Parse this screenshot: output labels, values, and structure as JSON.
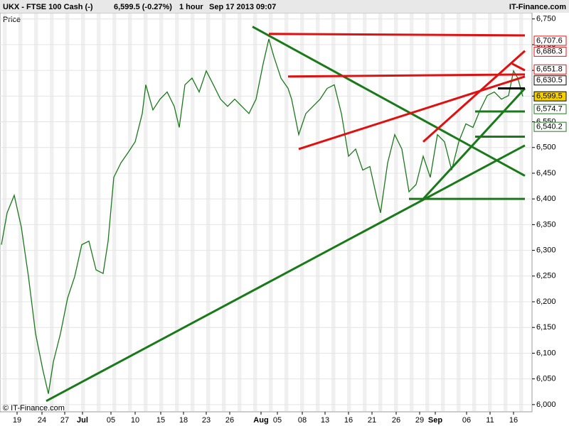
{
  "chart_data": {
    "type": "line",
    "header": {
      "title": "UKX - FTSE 100 Cash (-)",
      "quote": "6,599.5 (-0.27%)",
      "interval": "1 hour",
      "timestamp": "Sep 17 2013 09:07",
      "brand": "IT-Finance.com"
    },
    "ylabel": "Price",
    "watermark": "© IT-Finance.com",
    "color": "#1a7a1a",
    "xlim": [
      0,
      748
    ],
    "ylim": [
      5986,
      6762
    ],
    "x": [
      2,
      10,
      20,
      30,
      40,
      50,
      60,
      68,
      75,
      85,
      95,
      105,
      115,
      125,
      135,
      145,
      152,
      160,
      170,
      180,
      190,
      200,
      205,
      215,
      225,
      235,
      245,
      252,
      260,
      270,
      280,
      290,
      300,
      310,
      320,
      330,
      340,
      350,
      360,
      370,
      378,
      385,
      395,
      405,
      410,
      420,
      430,
      440,
      450,
      460,
      470,
      480,
      490,
      500,
      510,
      520,
      530,
      535,
      545,
      555,
      565,
      575,
      585,
      595,
      605,
      615,
      625,
      635,
      645,
      655,
      665,
      675,
      685,
      695,
      705,
      715,
      722,
      728,
      735
    ],
    "values": [
      6311,
      6373,
      6407,
      6345,
      6249,
      6138,
      6069,
      6021,
      6083,
      6138,
      6207,
      6249,
      6311,
      6318,
      6262,
      6255,
      6318,
      6442,
      6470,
      6490,
      6511,
      6566,
      6622,
      6573,
      6594,
      6608,
      6580,
      6539,
      6622,
      6635,
      6608,
      6649,
      6622,
      6594,
      6580,
      6594,
      6580,
      6566,
      6594,
      6663,
      6711,
      6677,
      6635,
      6615,
      6594,
      6525,
      6566,
      6580,
      6594,
      6615,
      6622,
      6566,
      6483,
      6497,
      6456,
      6463,
      6401,
      6373,
      6470,
      6525,
      6497,
      6414,
      6428,
      6483,
      6442,
      6525,
      6511,
      6456,
      6511,
      6546,
      6539,
      6573,
      6601,
      6608,
      6594,
      6601,
      6649,
      6635,
      6599.5
    ],
    "yticks": [
      {
        "value": 6000,
        "label": "6,000"
      },
      {
        "value": 6050,
        "label": "6,050"
      },
      {
        "value": 6100,
        "label": "6,100"
      },
      {
        "value": 6150,
        "label": "6,150"
      },
      {
        "value": 6200,
        "label": "6,200"
      },
      {
        "value": 6250,
        "label": "6,250"
      },
      {
        "value": 6300,
        "label": "6,300"
      },
      {
        "value": 6350,
        "label": "6,350"
      },
      {
        "value": 6400,
        "label": "6,400"
      },
      {
        "value": 6450,
        "label": "6,450"
      },
      {
        "value": 6500,
        "label": "6,500"
      },
      {
        "value": 6550,
        "label": "6,550"
      },
      {
        "value": 6600,
        "label": "6,600"
      },
      {
        "value": 6650,
        "label": "6,650"
      },
      {
        "value": 6700,
        "label": "6,700"
      },
      {
        "value": 6750,
        "label": "6,750"
      }
    ],
    "xticks": [
      {
        "value": 24,
        "label": "19"
      },
      {
        "value": 59,
        "label": "24"
      },
      {
        "value": 91,
        "label": "27"
      },
      {
        "value": 116,
        "label": "Jul"
      },
      {
        "value": 156,
        "label": "05"
      },
      {
        "value": 190,
        "label": "10"
      },
      {
        "value": 226,
        "label": "15"
      },
      {
        "value": 258,
        "label": "18"
      },
      {
        "value": 290,
        "label": "23"
      },
      {
        "value": 323,
        "label": "26"
      },
      {
        "value": 367,
        "label": "Aug"
      },
      {
        "value": 390,
        "label": "05"
      },
      {
        "value": 425,
        "label": "08"
      },
      {
        "value": 457,
        "label": "13"
      },
      {
        "value": 490,
        "label": "16"
      },
      {
        "value": 523,
        "label": "21"
      },
      {
        "value": 557,
        "label": "26"
      },
      {
        "value": 590,
        "label": "29"
      },
      {
        "value": 612,
        "label": "Sep"
      },
      {
        "value": 656,
        "label": "06"
      },
      {
        "value": 689,
        "label": "11"
      },
      {
        "value": 722,
        "label": "16"
      }
    ],
    "trendlines": [
      {
        "color": "#1a7a1a",
        "x": [
          355,
          738
        ],
        "y": [
          6735,
          6445
        ]
      },
      {
        "color": "#1a7a1a",
        "x": [
          65,
          738
        ],
        "y": [
          6007,
          6504
        ]
      },
      {
        "color": "#e01010",
        "x": [
          378,
          738
        ],
        "y": [
          6721,
          6718
        ]
      },
      {
        "color": "#e01010",
        "x": [
          405,
          738
        ],
        "y": [
          6638,
          6642
        ]
      },
      {
        "color": "#e01010",
        "x": [
          420,
          738
        ],
        "y": [
          6497,
          6638
        ]
      },
      {
        "color": "#e01010",
        "x": [
          595,
          738
        ],
        "y": [
          6511,
          6688
        ]
      },
      {
        "color": "#1a7a1a",
        "x": [
          595,
          738
        ],
        "y": [
          6400,
          6615
        ]
      },
      {
        "color": "#1a7a1a",
        "x": [
          575,
          738
        ],
        "y": [
          6400,
          6400
        ]
      },
      {
        "color": "#1a7a1a",
        "x": [
          668,
          738
        ],
        "y": [
          6521,
          6521
        ]
      },
      {
        "color": "#1a7a1a",
        "x": [
          668,
          738
        ],
        "y": [
          6570,
          6570
        ]
      },
      {
        "color": "#000000",
        "x": [
          700,
          738
        ],
        "y": [
          6615,
          6615
        ]
      },
      {
        "color": "#e01010",
        "x": [
          720,
          738
        ],
        "y": [
          6663,
          6650
        ]
      }
    ],
    "price_labels": [
      {
        "value": 6707.6,
        "label": "6,707.6",
        "color": "#e01010",
        "fill": "#ffffff"
      },
      {
        "value": 6686.3,
        "label": "6,686.3",
        "color": "#e01010",
        "fill": "#ffffff"
      },
      {
        "value": 6651.8,
        "label": "6,651.8",
        "color": "#e01010",
        "fill": "#ffffff"
      },
      {
        "value": 6630.5,
        "label": "6,630.5",
        "color": "#000000",
        "fill": "#ffffff"
      },
      {
        "value": 6599.5,
        "label": "6,599.5",
        "color": "#000000",
        "fill": "#f5d000"
      },
      {
        "value": 6574.7,
        "label": "6,574.7",
        "color": "#1a7a1a",
        "fill": "#ffffff"
      },
      {
        "value": 6540.2,
        "label": "6,540.2",
        "color": "#1a7a1a",
        "fill": "#ffffff"
      }
    ]
  }
}
